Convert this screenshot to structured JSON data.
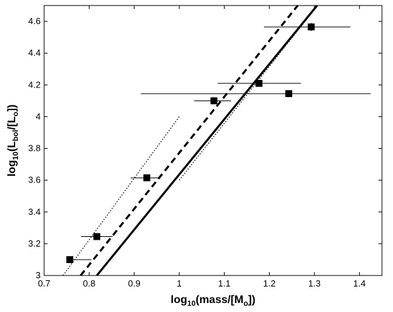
{
  "chart_data": {
    "type": "scatter",
    "xlabel": {
      "prefix": "log",
      "prefix_sub": "10",
      "main": "(mass/[M",
      "main_sub": "o",
      "suffix": "])"
    },
    "ylabel": {
      "prefix": "log",
      "prefix_sub": "10",
      "main": "(L",
      "main_sub": "bol",
      "mid": "/[L",
      "mid_sub": "o",
      "suffix": "])"
    },
    "xlim": [
      0.7,
      1.45
    ],
    "ylim": [
      3.0,
      4.7
    ],
    "xticks": [
      0.7,
      0.8,
      0.9,
      1.0,
      1.1,
      1.2,
      1.3,
      1.4
    ],
    "xtick_labels": [
      "0.7",
      "0.8",
      "0.9",
      "1",
      "1.1",
      "1.2",
      "1.3",
      "1.4"
    ],
    "yticks": [
      3.0,
      3.2,
      3.4,
      3.6,
      3.8,
      4.0,
      4.2,
      4.4,
      4.6
    ],
    "ytick_labels": [
      "3",
      "3.2",
      "3.4",
      "3.6",
      "3.8",
      "4",
      "4.2",
      "4.4",
      "4.6"
    ],
    "grid": false,
    "points": [
      {
        "x": 0.757,
        "y": 3.1,
        "xerr_low": 0.757,
        "xerr_high": 0.805,
        "yerr": 0.005
      },
      {
        "x": 0.817,
        "y": 3.245,
        "xerr_low": 0.782,
        "xerr_high": 0.852,
        "yerr": 0.005
      },
      {
        "x": 0.928,
        "y": 3.615,
        "xerr_low": 0.892,
        "xerr_high": 0.958,
        "yerr": 0.01
      },
      {
        "x": 1.077,
        "y": 4.1,
        "xerr_low": 1.033,
        "xerr_high": 1.115,
        "yerr": 0.01
      },
      {
        "x": 1.177,
        "y": 4.21,
        "xerr_low": 1.085,
        "xerr_high": 1.27,
        "yerr": 0.01
      },
      {
        "x": 1.243,
        "y": 4.145,
        "xerr_low": 0.915,
        "xerr_high": 1.425,
        "yerr": 0.01
      },
      {
        "x": 1.293,
        "y": 4.565,
        "xerr_low": 1.188,
        "xerr_high": 1.38,
        "yerr": 0.025
      }
    ],
    "lines": [
      {
        "style": "solid",
        "x": [
          0.817,
          1.306
        ],
        "y": [
          3.0,
          4.7
        ]
      },
      {
        "style": "dashed",
        "x": [
          0.781,
          1.263
        ],
        "y": [
          3.0,
          4.7
        ]
      },
      {
        "style": "dotted",
        "x": [
          0.742,
          1.0
        ],
        "y": [
          3.0,
          4.0
        ]
      },
      {
        "style": "dotted",
        "x": [
          1.0,
          1.307
        ],
        "y": [
          3.6,
          4.7
        ]
      }
    ],
    "colors": {
      "ink": "#000000",
      "background": "#ffffff"
    }
  }
}
